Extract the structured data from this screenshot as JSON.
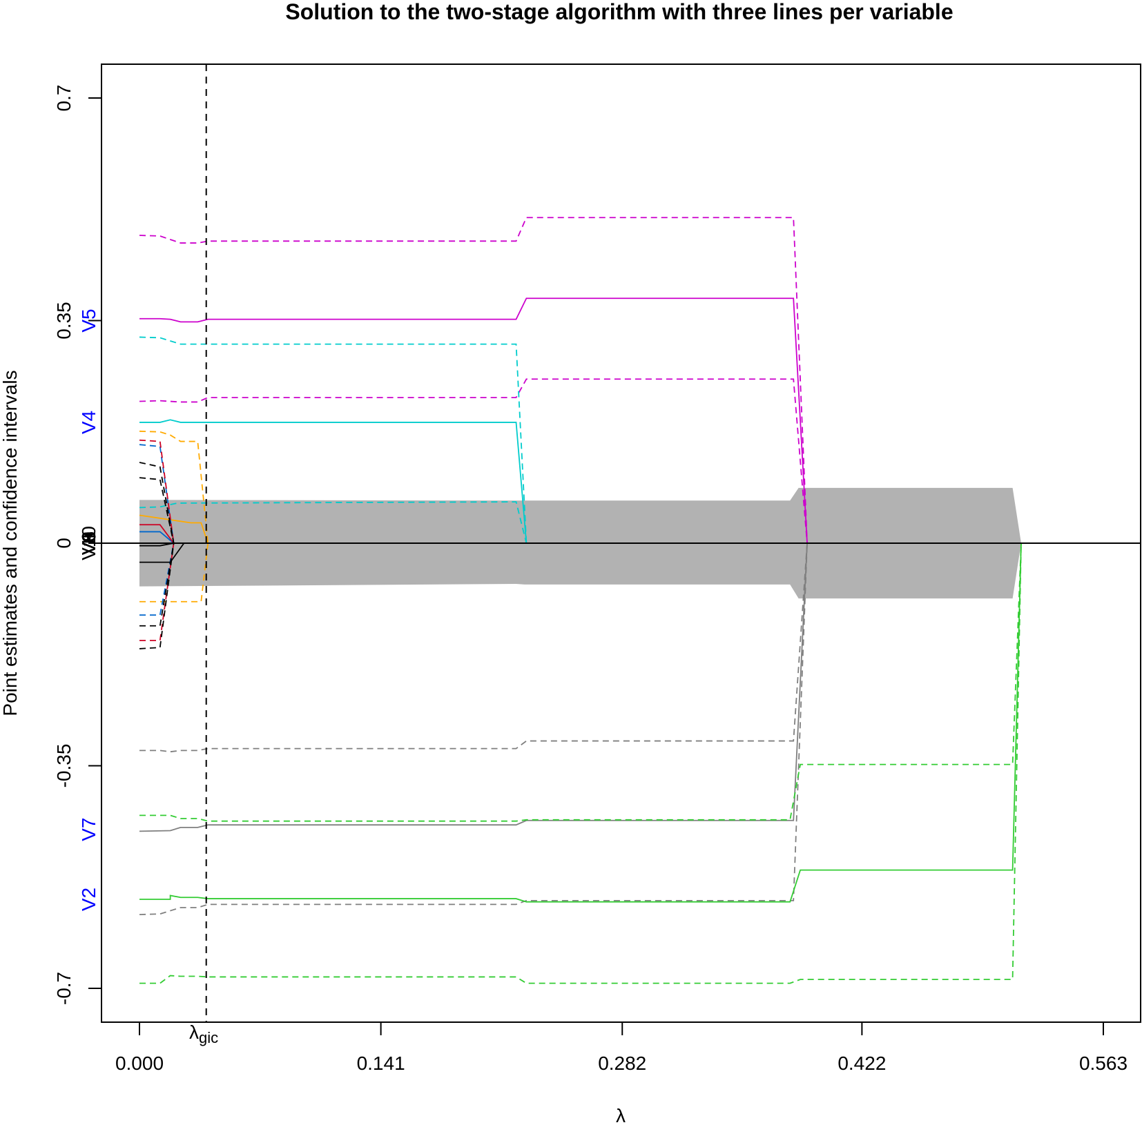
{
  "chart_data": {
    "type": "line",
    "title": "Solution to the two-stage algorithm with three lines per variable",
    "xlabel": "λ",
    "ylabel": "Point estimates and confidence intervals",
    "xlim": [
      0.0,
      0.563
    ],
    "ylim": [
      -0.7,
      0.7
    ],
    "x_ticks": [
      "0.000",
      "0.141",
      "0.282",
      "0.422",
      "0.563"
    ],
    "y_ticks": [
      "-0.7",
      "-0.35",
      "0",
      "0.35",
      "0.7"
    ],
    "lambda_gic": 0.039,
    "lambda_gic_label": "λ",
    "lambda_gic_sub": "gic",
    "variable_labels": [
      {
        "text": "V5",
        "y": 0.35,
        "color": "#0000ff"
      },
      {
        "text": "V4",
        "y": 0.19,
        "color": "#0000ff"
      },
      {
        "text": "V7",
        "y": -0.45,
        "color": "#0000ff"
      },
      {
        "text": "V2",
        "y": -0.56,
        "color": "#0000ff"
      },
      {
        "text": "V6",
        "y": 0.0,
        "color": "#000000"
      },
      {
        "text": "V10",
        "y": 0.0,
        "color": "#000000"
      },
      {
        "text": "V8",
        "y": 0.0,
        "color": "#000000"
      },
      {
        "text": "V9",
        "y": 0.0,
        "color": "#000000"
      },
      {
        "text": "V3",
        "y": 0.0,
        "color": "#000000"
      },
      {
        "text": "V1",
        "y": 0.0,
        "color": "#000000"
      }
    ],
    "band": {
      "color": "#b2b2b2",
      "upper": [
        [
          0.0,
          0.068
        ],
        [
          0.22,
          0.067
        ],
        [
          0.38,
          0.067
        ],
        [
          0.385,
          0.087
        ],
        [
          0.51,
          0.087
        ],
        [
          0.515,
          0.0
        ]
      ],
      "lower": [
        [
          0.0,
          -0.068
        ],
        [
          0.22,
          -0.064
        ],
        [
          0.225,
          -0.065
        ],
        [
          0.38,
          -0.065
        ],
        [
          0.385,
          -0.087
        ],
        [
          0.51,
          -0.087
        ],
        [
          0.515,
          0.0
        ]
      ]
    },
    "series": [
      {
        "color": "#cc00cc",
        "style": "solid",
        "points": [
          [
            0.0,
            0.353
          ],
          [
            0.012,
            0.353
          ],
          [
            0.018,
            0.352
          ],
          [
            0.024,
            0.348
          ],
          [
            0.034,
            0.348
          ],
          [
            0.04,
            0.352
          ],
          [
            0.22,
            0.352
          ],
          [
            0.226,
            0.385
          ],
          [
            0.382,
            0.385
          ],
          [
            0.39,
            0.0
          ]
        ]
      },
      {
        "color": "#cc00cc",
        "style": "dashed",
        "points": [
          [
            0.0,
            0.484
          ],
          [
            0.012,
            0.483
          ],
          [
            0.024,
            0.472
          ],
          [
            0.034,
            0.472
          ],
          [
            0.04,
            0.475
          ],
          [
            0.22,
            0.475
          ],
          [
            0.226,
            0.512
          ],
          [
            0.382,
            0.512
          ],
          [
            0.39,
            0.0
          ]
        ]
      },
      {
        "color": "#cc00cc",
        "style": "dashed",
        "points": [
          [
            0.0,
            0.223
          ],
          [
            0.012,
            0.224
          ],
          [
            0.024,
            0.222
          ],
          [
            0.034,
            0.222
          ],
          [
            0.04,
            0.229
          ],
          [
            0.22,
            0.229
          ],
          [
            0.226,
            0.258
          ],
          [
            0.382,
            0.258
          ],
          [
            0.39,
            0.0
          ]
        ]
      },
      {
        "color": "#00cccc",
        "style": "solid",
        "points": [
          [
            0.0,
            0.19
          ],
          [
            0.012,
            0.19
          ],
          [
            0.018,
            0.194
          ],
          [
            0.024,
            0.19
          ],
          [
            0.22,
            0.19
          ],
          [
            0.226,
            0.0
          ]
        ]
      },
      {
        "color": "#00cccc",
        "style": "dashed",
        "points": [
          [
            0.0,
            0.324
          ],
          [
            0.012,
            0.323
          ],
          [
            0.024,
            0.313
          ],
          [
            0.22,
            0.313
          ],
          [
            0.226,
            0.0
          ]
        ]
      },
      {
        "color": "#00cccc",
        "style": "dashed",
        "points": [
          [
            0.0,
            0.056
          ],
          [
            0.012,
            0.057
          ],
          [
            0.022,
            0.063
          ],
          [
            0.22,
            0.065
          ],
          [
            0.226,
            0.0
          ]
        ]
      },
      {
        "color": "#7f7f7f",
        "style": "solid",
        "points": [
          [
            0.0,
            -0.453
          ],
          [
            0.018,
            -0.452
          ],
          [
            0.024,
            -0.447
          ],
          [
            0.034,
            -0.447
          ],
          [
            0.04,
            -0.443
          ],
          [
            0.22,
            -0.443
          ],
          [
            0.226,
            -0.436
          ],
          [
            0.382,
            -0.436
          ],
          [
            0.39,
            0.0
          ]
        ]
      },
      {
        "color": "#7f7f7f",
        "style": "dashed",
        "points": [
          [
            0.0,
            -0.326
          ],
          [
            0.012,
            -0.326
          ],
          [
            0.018,
            -0.328
          ],
          [
            0.024,
            -0.326
          ],
          [
            0.034,
            -0.326
          ],
          [
            0.04,
            -0.323
          ],
          [
            0.22,
            -0.323
          ],
          [
            0.226,
            -0.311
          ],
          [
            0.382,
            -0.311
          ],
          [
            0.39,
            0.0
          ]
        ]
      },
      {
        "color": "#7f7f7f",
        "style": "dashed",
        "points": [
          [
            0.0,
            -0.584
          ],
          [
            0.012,
            -0.583
          ],
          [
            0.024,
            -0.573
          ],
          [
            0.034,
            -0.573
          ],
          [
            0.04,
            -0.568
          ],
          [
            0.22,
            -0.568
          ],
          [
            0.226,
            -0.562
          ],
          [
            0.382,
            -0.562
          ],
          [
            0.39,
            0.0
          ]
        ]
      },
      {
        "color": "#33cc33",
        "style": "solid",
        "points": [
          [
            0.0,
            -0.56
          ],
          [
            0.018,
            -0.56
          ],
          [
            0.018,
            -0.554
          ],
          [
            0.024,
            -0.557
          ],
          [
            0.034,
            -0.557
          ],
          [
            0.04,
            -0.559
          ],
          [
            0.22,
            -0.559
          ],
          [
            0.226,
            -0.564
          ],
          [
            0.38,
            -0.564
          ],
          [
            0.386,
            -0.514
          ],
          [
            0.51,
            -0.514
          ],
          [
            0.515,
            0.0
          ]
        ]
      },
      {
        "color": "#33cc33",
        "style": "dashed",
        "points": [
          [
            0.0,
            -0.428
          ],
          [
            0.018,
            -0.428
          ],
          [
            0.024,
            -0.433
          ],
          [
            0.034,
            -0.433
          ],
          [
            0.04,
            -0.437
          ],
          [
            0.22,
            -0.437
          ],
          [
            0.226,
            -0.435
          ],
          [
            0.38,
            -0.435
          ],
          [
            0.386,
            -0.348
          ],
          [
            0.51,
            -0.348
          ],
          [
            0.515,
            0.0
          ]
        ]
      },
      {
        "color": "#33cc33",
        "style": "dashed",
        "points": [
          [
            0.0,
            -0.692
          ],
          [
            0.012,
            -0.692
          ],
          [
            0.018,
            -0.68
          ],
          [
            0.024,
            -0.681
          ],
          [
            0.034,
            -0.681
          ],
          [
            0.04,
            -0.682
          ],
          [
            0.22,
            -0.682
          ],
          [
            0.226,
            -0.692
          ],
          [
            0.38,
            -0.692
          ],
          [
            0.386,
            -0.686
          ],
          [
            0.51,
            -0.686
          ],
          [
            0.515,
            0.0
          ]
        ]
      },
      {
        "color": "#ffaa00",
        "style": "solid",
        "points": [
          [
            0.0,
            0.044
          ],
          [
            0.03,
            0.032
          ],
          [
            0.036,
            0.032
          ],
          [
            0.04,
            0.0
          ]
        ]
      },
      {
        "color": "#ffaa00",
        "style": "dashed",
        "points": [
          [
            0.0,
            0.176
          ],
          [
            0.012,
            0.175
          ],
          [
            0.018,
            0.17
          ],
          [
            0.024,
            0.16
          ],
          [
            0.034,
            0.16
          ],
          [
            0.04,
            0.0
          ]
        ]
      },
      {
        "color": "#ffaa00",
        "style": "dashed",
        "points": [
          [
            0.0,
            -0.092
          ],
          [
            0.03,
            -0.092
          ],
          [
            0.036,
            -0.092
          ],
          [
            0.04,
            0.0
          ]
        ]
      },
      {
        "color": "#0066cc",
        "style": "solid",
        "points": [
          [
            0.0,
            0.018
          ],
          [
            0.012,
            0.018
          ],
          [
            0.02,
            0.0
          ]
        ]
      },
      {
        "color": "#0066cc",
        "style": "dashed",
        "points": [
          [
            0.0,
            0.155
          ],
          [
            0.012,
            0.152
          ],
          [
            0.02,
            0.0
          ]
        ]
      },
      {
        "color": "#0066cc",
        "style": "dashed",
        "points": [
          [
            0.0,
            -0.113
          ],
          [
            0.012,
            -0.113
          ],
          [
            0.02,
            0.0
          ]
        ]
      },
      {
        "color": "#cc0022",
        "style": "solid",
        "points": [
          [
            0.0,
            0.029
          ],
          [
            0.012,
            0.029
          ],
          [
            0.02,
            0.0
          ]
        ]
      },
      {
        "color": "#cc0022",
        "style": "dashed",
        "points": [
          [
            0.0,
            0.162
          ],
          [
            0.012,
            0.16
          ],
          [
            0.02,
            0.0
          ]
        ]
      },
      {
        "color": "#cc0022",
        "style": "dashed",
        "points": [
          [
            0.0,
            -0.153
          ],
          [
            0.012,
            -0.153
          ],
          [
            0.02,
            0.0
          ]
        ]
      },
      {
        "color": "#000000",
        "style": "solid",
        "points": [
          [
            0.0,
            -0.03
          ],
          [
            0.018,
            -0.03
          ],
          [
            0.026,
            0.0
          ]
        ]
      },
      {
        "color": "#000000",
        "style": "dashed",
        "points": [
          [
            0.0,
            0.127
          ],
          [
            0.012,
            0.12
          ],
          [
            0.02,
            0.0
          ]
        ]
      },
      {
        "color": "#000000",
        "style": "dashed",
        "points": [
          [
            0.0,
            -0.166
          ],
          [
            0.012,
            -0.164
          ],
          [
            0.02,
            0.0
          ]
        ]
      },
      {
        "color": "#000000",
        "style": "dashed",
        "points": [
          [
            0.0,
            0.103
          ],
          [
            0.012,
            0.1
          ],
          [
            0.02,
            0.0
          ]
        ]
      },
      {
        "color": "#000000",
        "style": "dashed",
        "points": [
          [
            0.0,
            -0.13
          ],
          [
            0.012,
            -0.13
          ],
          [
            0.02,
            0.0
          ]
        ]
      },
      {
        "color": "#000000",
        "style": "solid",
        "points": [
          [
            0.0,
            -0.004
          ],
          [
            0.012,
            -0.004
          ],
          [
            0.02,
            0.0
          ]
        ]
      }
    ]
  }
}
